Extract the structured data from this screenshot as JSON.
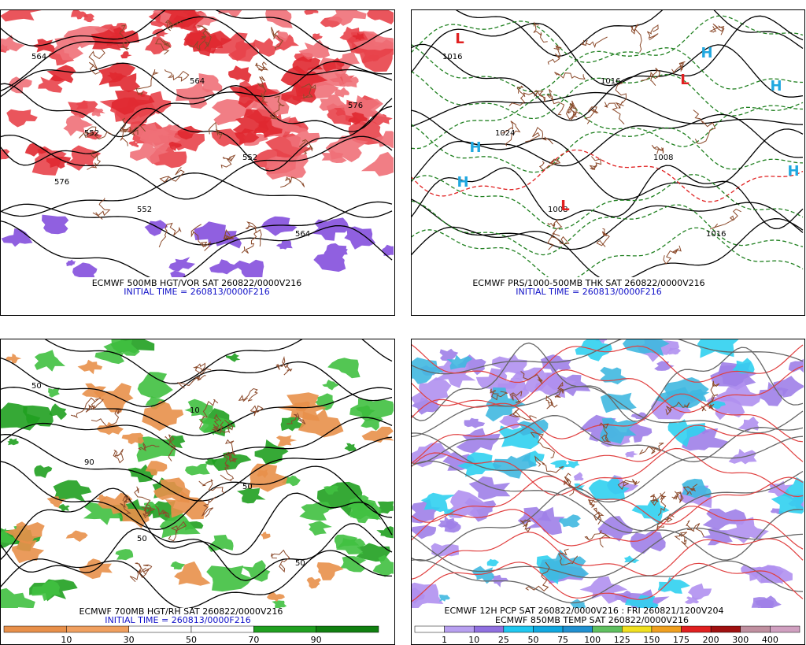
{
  "panels": [
    {
      "caption": "ECMWF 500MB HGT/VOR SAT 260822/0000V216",
      "initial_time": "INITIAL TIME = 260813/0000F216",
      "contour_labels": [
        "564",
        "552",
        "552",
        "564",
        "552",
        "564",
        "576",
        "576"
      ]
    },
    {
      "caption": "ECMWF PRS/1000-500MB THK SAT 260822/0000V216",
      "initial_time": "INITIAL TIME = 260813/0000F216",
      "contour_labels": [
        "1016",
        "1024",
        "1008",
        "1016",
        "1008",
        "1016"
      ],
      "markers": [
        "H",
        "H",
        "H",
        "H",
        "H",
        "L",
        "L",
        "L"
      ]
    },
    {
      "caption": "ECMWF 700MB HGT/RH SAT 260822/0000V216",
      "initial_time": "INITIAL TIME = 260813/0000F216",
      "contour_labels": [
        "50",
        "90",
        "50",
        "10",
        "50",
        "50"
      ],
      "colorbar_labels": [
        "10",
        "30",
        "50",
        "70",
        "90"
      ]
    },
    {
      "caption": "ECMWF 12H PCP SAT 260822/0000V216 : FRI 260821/1200V204",
      "caption2": "ECMWF 850MB TEMP SAT 260822/0000V216",
      "colorbar_labels": [
        "1",
        "10",
        "25",
        "50",
        "75",
        "100",
        "125",
        "150",
        "175",
        "200",
        "300",
        "400"
      ]
    }
  ]
}
